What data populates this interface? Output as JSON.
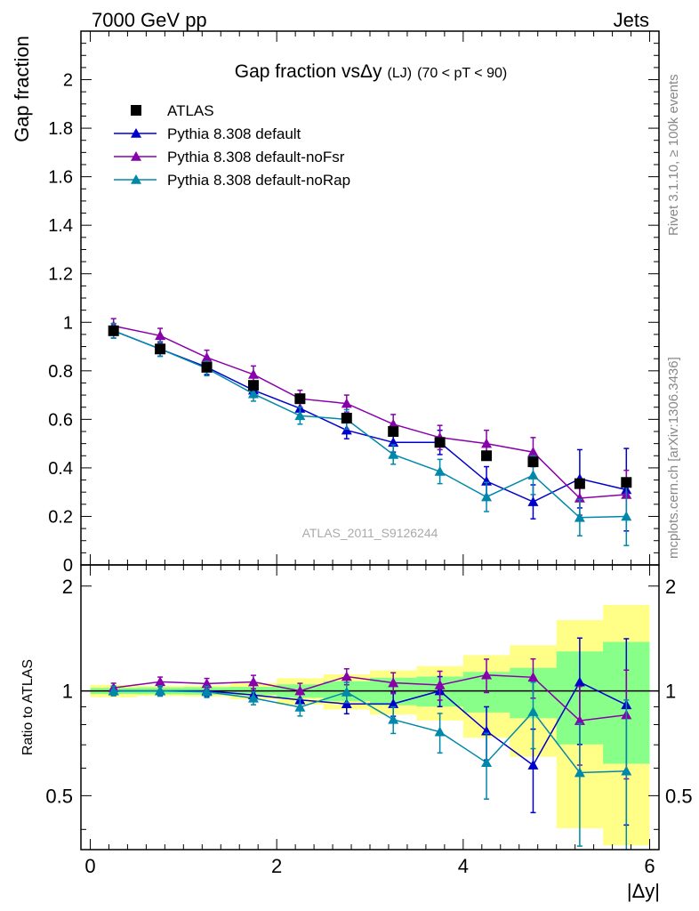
{
  "header": {
    "left": "7000 GeV pp",
    "right": "Jets"
  },
  "side": {
    "rivet": "Rivet 3.1.10, ≥ 100k events",
    "mcplots": "mcplots.cern.ch [arXiv:1306.3436]"
  },
  "chart_data": {
    "type": "line",
    "title_main": "Gap fraction vsΔy",
    "title_sub": "(LJ)",
    "title_range": "(70 < pT <  90)",
    "analysis_label": "ATLAS_2011_S9126244",
    "xlabel": "|Δy|",
    "ylabel_top": "Gap fraction",
    "ylabel_bottom": "Ratio to ATLAS",
    "xlim": [
      -0.1,
      6.1
    ],
    "ylim_top": [
      0,
      2.2
    ],
    "ylim_bottom": [
      0.35,
      2.3
    ],
    "x_ticks": [
      "0",
      "2",
      "4",
      "6"
    ],
    "y_ticks_top": [
      "0",
      "0.2",
      "0.4",
      "0.6",
      "0.8",
      "1",
      "1.2",
      "1.4",
      "1.6",
      "1.8",
      "2"
    ],
    "y_ticks_bottom": [
      "0.5",
      "1",
      "2"
    ],
    "x": [
      0.25,
      0.75,
      1.25,
      1.75,
      2.25,
      2.75,
      3.25,
      3.75,
      4.25,
      4.75,
      5.25,
      5.75
    ],
    "data": {
      "name": "ATLAS",
      "color": "#000000",
      "values": [
        0.965,
        0.89,
        0.815,
        0.74,
        0.685,
        0.605,
        0.55,
        0.505,
        0.45,
        0.425,
        0.335,
        0.34
      ],
      "band_yellow": [
        0.04,
        0.03,
        0.03,
        0.04,
        0.06,
        0.07,
        0.08,
        0.09,
        0.12,
        0.15,
        0.2,
        0.26
      ],
      "band_green": [
        0.02,
        0.02,
        0.02,
        0.02,
        0.03,
        0.04,
        0.05,
        0.05,
        0.06,
        0.07,
        0.1,
        0.13
      ]
    },
    "series": [
      {
        "name": "Pythia 8.308 default",
        "color": "#0000cc",
        "values": [
          0.965,
          0.89,
          0.815,
          0.72,
          0.645,
          0.555,
          0.505,
          0.505,
          0.345,
          0.26,
          0.355,
          0.31
        ],
        "errors": [
          0.03,
          0.03,
          0.03,
          0.03,
          0.03,
          0.035,
          0.04,
          0.05,
          0.06,
          0.07,
          0.12,
          0.17
        ]
      },
      {
        "name": "Pythia 8.308 default-noFsr",
        "color": "#8800aa",
        "values": [
          0.985,
          0.945,
          0.855,
          0.785,
          0.685,
          0.665,
          0.58,
          0.525,
          0.5,
          0.465,
          0.275,
          0.29
        ],
        "errors": [
          0.03,
          0.03,
          0.03,
          0.035,
          0.035,
          0.035,
          0.04,
          0.05,
          0.055,
          0.06,
          0.07,
          0.1
        ]
      },
      {
        "name": "Pythia 8.308 default-noRap",
        "color": "#0088aa",
        "values": [
          0.965,
          0.89,
          0.81,
          0.705,
          0.615,
          0.6,
          0.455,
          0.385,
          0.28,
          0.37,
          0.195,
          0.2
        ],
        "errors": [
          0.03,
          0.03,
          0.03,
          0.03,
          0.035,
          0.04,
          0.04,
          0.05,
          0.06,
          0.08,
          0.075,
          0.12
        ]
      }
    ]
  }
}
